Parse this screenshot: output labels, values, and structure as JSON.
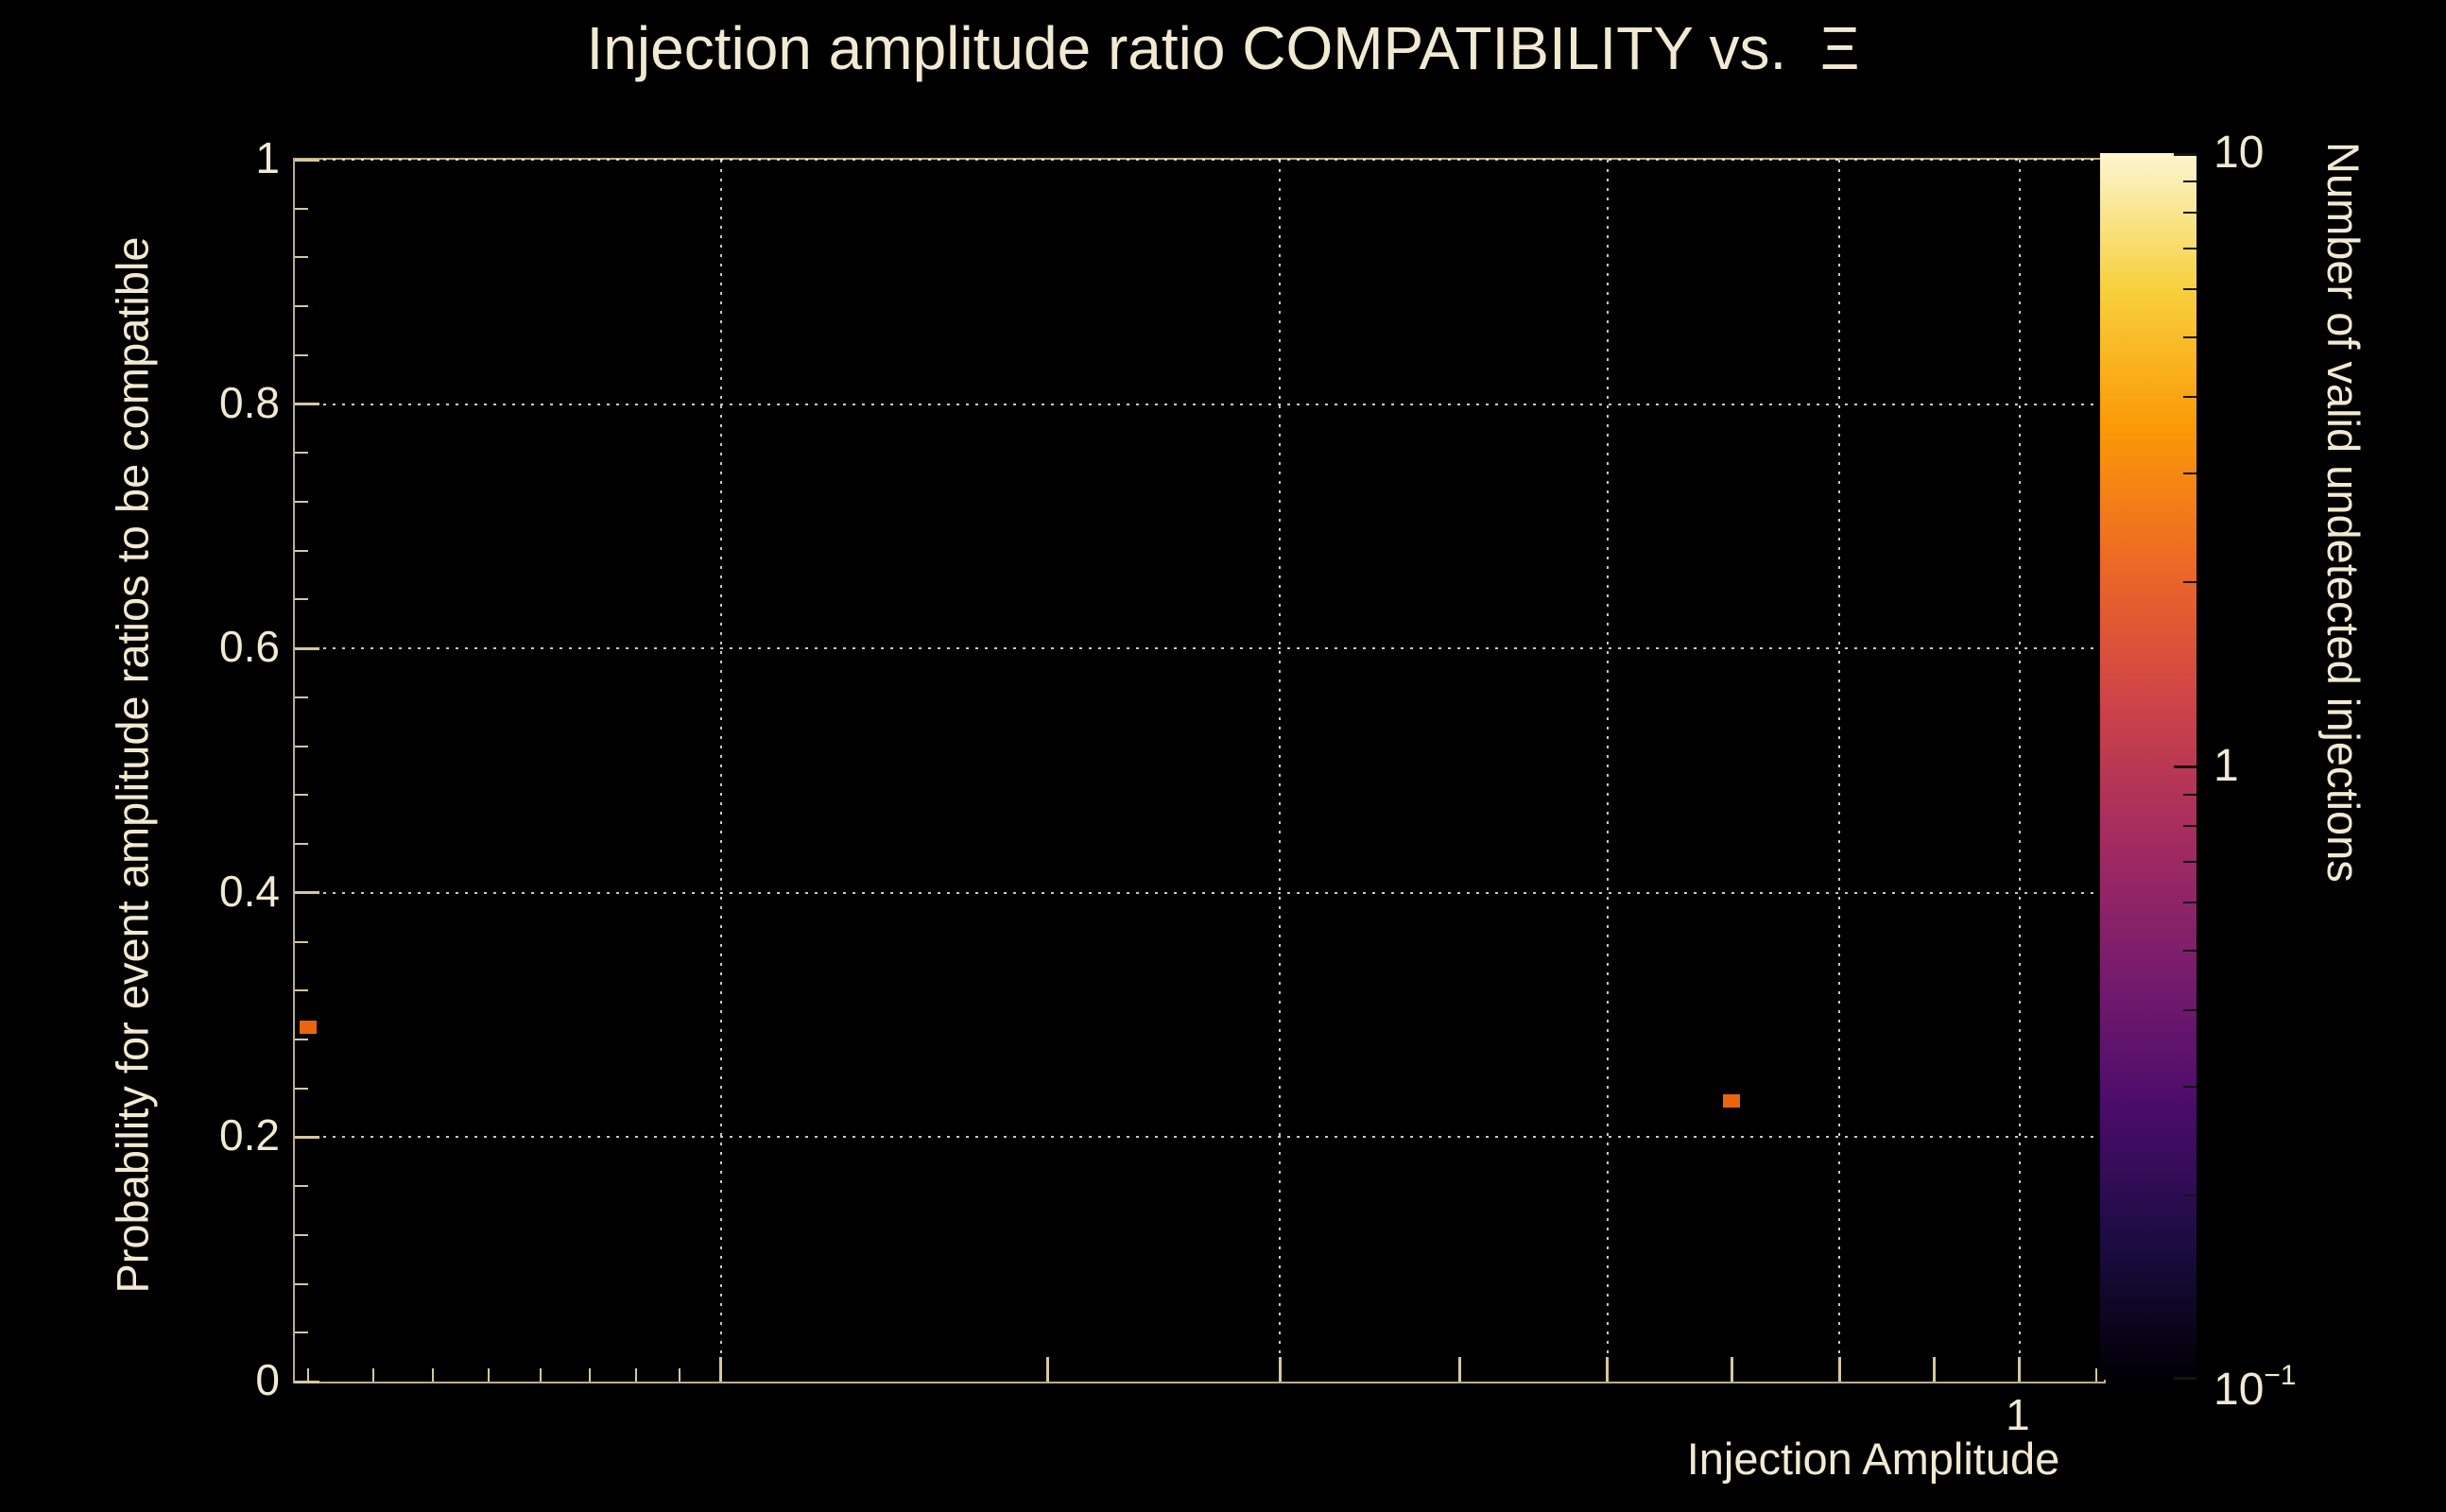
{
  "colors": {
    "background": "#000000",
    "text": "#f2e9d2",
    "axis": "#d6c79e",
    "grid": "#fafafa",
    "marker": "#eb650e"
  },
  "chart_data": {
    "type": "scatter",
    "title": "Injection amplitude ratio COMPATIBILITY vs.  Ξ",
    "xlabel": "Injection Amplitude",
    "ylabel": "Probability for event amplitude ratios to be compatible",
    "x_scale": "log",
    "y_scale": "linear",
    "xlim": [
      0.118,
      1.11
    ],
    "ylim": [
      0,
      1
    ],
    "grid": true,
    "y_ticks": [
      {
        "value": 0,
        "label": "0"
      },
      {
        "value": 0.2,
        "label": "0.2"
      },
      {
        "value": 0.4,
        "label": "0.4"
      },
      {
        "value": 0.6,
        "label": "0.6"
      },
      {
        "value": 0.8,
        "label": "0.8"
      },
      {
        "value": 1,
        "label": "1"
      }
    ],
    "y_minor_step": 0.04,
    "y_gridlines": [
      0.2,
      0.4,
      0.6,
      0.8,
      1
    ],
    "x_ticks": [
      {
        "value": 1,
        "label": "1"
      }
    ],
    "x_major_ticks": [
      0.2,
      0.3,
      0.4,
      0.5,
      0.6,
      0.7,
      0.8,
      0.9,
      1
    ],
    "x_minor_ticks": [
      0.12,
      0.13,
      0.14,
      0.15,
      0.16,
      0.17,
      0.18,
      0.19,
      1.1
    ],
    "x_gridlines": [
      0.2,
      0.4,
      0.6,
      0.8,
      1
    ],
    "points": [
      {
        "x": 0.12,
        "y": 0.29,
        "marker": "square",
        "color": "#eb650e",
        "z": 1
      },
      {
        "x": 0.7,
        "y": 0.23,
        "marker": "square",
        "color": "#eb650e",
        "z": 1
      }
    ],
    "colorbar": {
      "label": "Number of valid undetected injections",
      "scale": "log",
      "range": [
        0.1,
        10
      ],
      "tick_labels": [
        {
          "value": 10,
          "base": "10",
          "exp": ""
        },
        {
          "value": 1,
          "base": "1",
          "exp": ""
        },
        {
          "value": 0.1,
          "base": "10",
          "exp": "−1"
        }
      ],
      "minor_ticks": [
        0.2,
        0.3,
        0.4,
        0.5,
        0.6,
        0.7,
        0.8,
        0.9,
        2,
        3,
        4,
        5,
        6,
        7,
        8,
        9
      ],
      "gradient": [
        "#000004",
        "#1b0c42",
        "#4b0c6b",
        "#781c6d",
        "#a52c60",
        "#cf4446",
        "#ed6925",
        "#fb9a06",
        "#f7d03c",
        "#fcf6d0"
      ]
    }
  }
}
